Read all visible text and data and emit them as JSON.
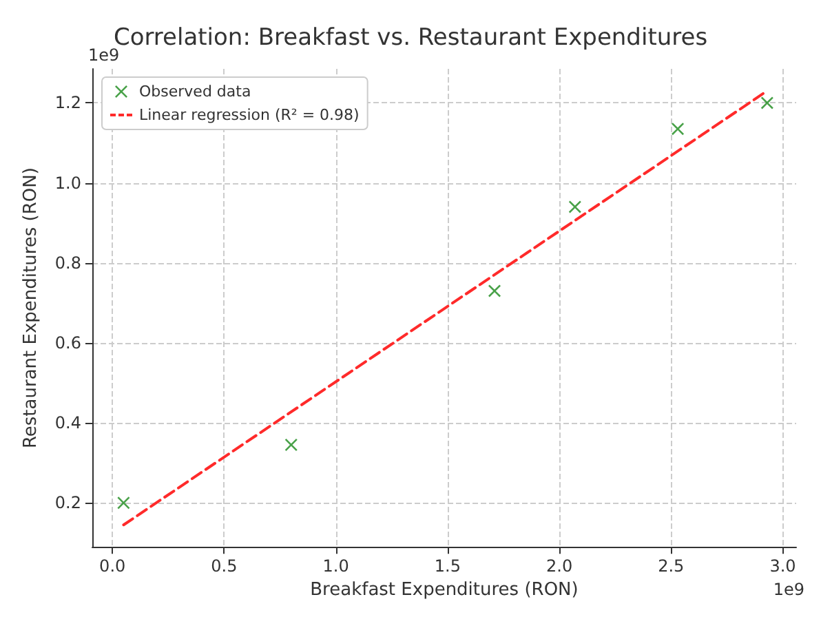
{
  "chart_data": {
    "type": "scatter",
    "title": "Correlation: Breakfast vs. Restaurant Expenditures",
    "xlabel": "Breakfast Expenditures (RON)",
    "ylabel": "Restaurant Expenditures (RON)",
    "annotations": [
      "1e9",
      "1e9"
    ],
    "series": [
      {
        "name": "Observed data",
        "color": "#1a8a1a",
        "marker": "cross",
        "x": [
          0.05,
          0.8,
          1.71,
          2.07,
          2.53,
          2.93
        ],
        "values": [
          0.2,
          0.345,
          0.73,
          0.94,
          1.135,
          1.2
        ]
      },
      {
        "name": "Linear regression (R² = 0.98)",
        "type": "line",
        "color": "#ff2a2a",
        "line_style": "dashed",
        "marker": "none",
        "x": [
          0.05,
          2.93
        ],
        "values": [
          0.145,
          1.23
        ]
      }
    ],
    "xlim": [
      -0.09,
      3.06
    ],
    "ylim": [
      0.09,
      1.285
    ],
    "xticks": [
      {
        "value": 0,
        "label": "0.0"
      },
      0.5,
      {
        "value": 1,
        "label": "1.0"
      },
      1.5,
      {
        "value": 2,
        "label": "2.0"
      },
      2.5,
      {
        "value": 3,
        "label": "3.0"
      }
    ],
    "yticks": [
      0.2,
      0.4,
      0.6,
      0.8,
      {
        "value": 1,
        "label": "1.0"
      },
      1.2
    ],
    "grid": true,
    "legend": "top left"
  }
}
